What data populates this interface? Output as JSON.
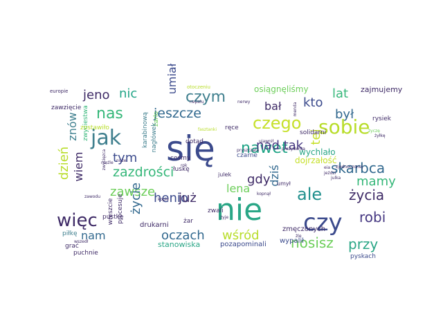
{
  "word_cloud": {
    "words": [
      {
        "text": "się",
        "color": "#3b4a8c"
      },
      {
        "text": "nie",
        "color": "#2aa686"
      },
      {
        "text": "czy",
        "color": "#3b4a8c"
      },
      {
        "text": "jak",
        "color": "#3f7f8e"
      },
      {
        "text": "sobie",
        "color": "#b8dd2a"
      },
      {
        "text": "czym",
        "color": "#3f7f8e"
      },
      {
        "text": "czego",
        "color": "#c6e02a"
      },
      {
        "text": "nawet",
        "color": "#20a486"
      },
      {
        "text": "więc",
        "color": "#3e2a66"
      },
      {
        "text": "nas",
        "color": "#35b779"
      },
      {
        "text": "ale",
        "color": "#21908d"
      },
      {
        "text": "życia",
        "color": "#3e2a66"
      },
      {
        "text": "skarbca",
        "color": "#31688e"
      },
      {
        "text": "jeszcze",
        "color": "#31688e"
      },
      {
        "text": "zazdrości",
        "color": "#35b779"
      },
      {
        "text": "robi",
        "color": "#453781"
      },
      {
        "text": "przy",
        "color": "#2aa686"
      },
      {
        "text": "nosisz",
        "color": "#6cce59"
      },
      {
        "text": "oczach",
        "color": "#31688e"
      },
      {
        "text": "wśród",
        "color": "#b8dd2a"
      },
      {
        "text": "nad tak",
        "color": "#453781"
      },
      {
        "text": "nic",
        "color": "#20a486"
      },
      {
        "text": "jeno",
        "color": "#3e2a66"
      },
      {
        "text": "lat",
        "color": "#35b779"
      },
      {
        "text": "był",
        "color": "#31688e"
      },
      {
        "text": "kto",
        "color": "#3b4a8c"
      },
      {
        "text": "bał",
        "color": "#3e2a66"
      },
      {
        "text": "umiał",
        "color": "#3b4a8c"
      },
      {
        "text": "tym",
        "color": "#3b4a8c"
      },
      {
        "text": "znów",
        "color": "#3f7f8e"
      },
      {
        "text": "wiem",
        "color": "#3e2a66"
      },
      {
        "text": "dzień",
        "color": "#b8dd2a"
      },
      {
        "text": "zawsze",
        "color": "#6cce59"
      },
      {
        "text": "henio",
        "color": "#3b4a8c"
      },
      {
        "text": "już",
        "color": "#3e2a66"
      },
      {
        "text": "lena",
        "color": "#6cce59"
      },
      {
        "text": "gdy",
        "color": "#3e2a66"
      },
      {
        "text": "dziś",
        "color": "#31688e"
      },
      {
        "text": "mamy",
        "color": "#35b779"
      },
      {
        "text": "tej",
        "color": "#c6e02a"
      },
      {
        "text": "życie",
        "color": "#31688e"
      },
      {
        "text": "nam",
        "color": "#31688e"
      },
      {
        "text": "zajmujemy",
        "color": "#3e2a66"
      },
      {
        "text": "osiągnęliśmy",
        "color": "#6cce59"
      },
      {
        "text": "dojrzałość",
        "color": "#c6e02a"
      },
      {
        "text": "wychlało",
        "color": "#2aa686"
      },
      {
        "text": "solidarni",
        "color": "#3e2a66"
      },
      {
        "text": "rysiek",
        "color": "#3e2a66"
      },
      {
        "text": "zmęczonych",
        "color": "#3e2a66"
      },
      {
        "text": "wypalił",
        "color": "#3b4a8c"
      },
      {
        "text": "pyskach",
        "color": "#3b4a8c"
      },
      {
        "text": "pozapominali",
        "color": "#3b4a8c"
      },
      {
        "text": "stanowiska",
        "color": "#2aa686"
      },
      {
        "text": "drukarni",
        "color": "#3e2a66"
      },
      {
        "text": "puchnie",
        "color": "#3e2a66"
      },
      {
        "text": "procesuje",
        "color": "#3e2a66"
      },
      {
        "text": "wreszcie",
        "color": "#3e2a66"
      },
      {
        "text": "piłkę",
        "color": "#3f7f8e"
      },
      {
        "text": "grać",
        "color": "#3e2a66"
      },
      {
        "text": "pustkę",
        "color": "#3e2a66"
      },
      {
        "text": "zwyciestwa",
        "color": "#35b779"
      },
      {
        "text": "zostawiło",
        "color": "#b8dd2a"
      },
      {
        "text": "zawzięcie",
        "color": "#3e2a66"
      },
      {
        "text": "karabinową",
        "color": "#3f7f8e"
      },
      {
        "text": "żarło",
        "color": "#6cce59"
      },
      {
        "text": "nagłówek",
        "color": "#3f7f8e"
      },
      {
        "text": "łuskę",
        "color": "#3e2a66"
      },
      {
        "text": "czarne",
        "color": "#3b4a8c"
      },
      {
        "text": "cośmy",
        "color": "#3e2a66"
      },
      {
        "text": "dotąd",
        "color": "#3e2a66"
      },
      {
        "text": "ręce",
        "color": "#3e2a66"
      },
      {
        "text": "zwali",
        "color": "#3e2a66"
      },
      {
        "text": "żar",
        "color": "#3e2a66"
      },
      {
        "text": "julek",
        "color": "#3e2a66"
      },
      {
        "text": "umył",
        "color": "#3e2a66"
      },
      {
        "text": "europie",
        "color": "#3e2a66"
      },
      {
        "text": "otoczeniu",
        "color": "#b8dd2a"
      },
      {
        "text": "nepalu",
        "color": "#3e2a66"
      },
      {
        "text": "nerwy",
        "color": "#3e2a66"
      },
      {
        "text": "ujawnił",
        "color": "#3e2a66"
      },
      {
        "text": "menda",
        "color": "#3e2a66"
      },
      {
        "text": "życzę",
        "color": "#6cce59"
      },
      {
        "text": "żyłkę",
        "color": "#3e2a66"
      },
      {
        "text": "zjednoczonej",
        "color": "#3e2a66"
      },
      {
        "text": "prezydenta",
        "color": "#3e2a66"
      },
      {
        "text": "pryszczata",
        "color": "#3e2a66"
      },
      {
        "text": "eia",
        "color": "#3e2a66"
      },
      {
        "text": "jeździ",
        "color": "#3e2a66"
      },
      {
        "text": "julka",
        "color": "#3e2a66"
      },
      {
        "text": "kopnął",
        "color": "#3e2a66"
      },
      {
        "text": "rok",
        "color": "#3e2a66"
      },
      {
        "text": "kopie",
        "color": "#3e2a66"
      },
      {
        "text": "zwycięzca",
        "color": "#3e2a66"
      },
      {
        "text": "wszedł",
        "color": "#3e2a66"
      },
      {
        "text": "zawodu",
        "color": "#3e2a66"
      },
      {
        "text": "nieźle",
        "color": "#3e2a66"
      },
      {
        "text": "żyje",
        "color": "#3e2a66"
      },
      {
        "text": "żle",
        "color": "#3e2a66"
      },
      {
        "text": "fasztanki",
        "color": "#b8dd2a"
      },
      {
        "text": "nuże",
        "color": "#3e2a66"
      }
    ]
  }
}
